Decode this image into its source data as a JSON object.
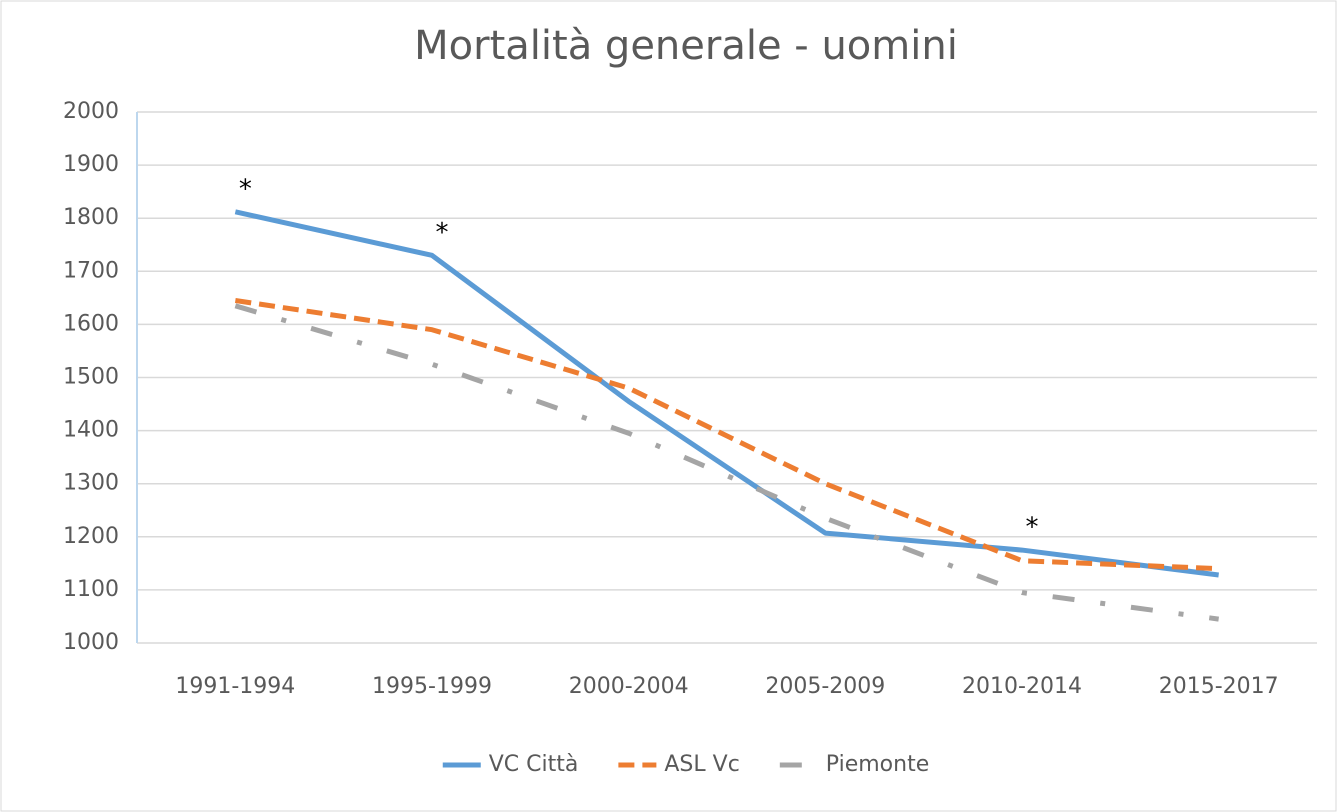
{
  "chart_data": {
    "type": "line",
    "title": "Mortalità generale - uomini",
    "categories": [
      "1991-1994",
      "1995-1999",
      "2000-2004",
      "2005-2009",
      "2010-2014",
      "2015-2017"
    ],
    "series": [
      {
        "name": "VC Città",
        "color": "#5b9bd5",
        "style": "solid",
        "values": [
          1812,
          1730,
          1455,
          1207,
          1175,
          1128
        ]
      },
      {
        "name": "ASL Vc",
        "color": "#ed7d31",
        "style": "dash",
        "values": [
          1645,
          1590,
          1480,
          1300,
          1155,
          1140
        ]
      },
      {
        "name": "Piemonte",
        "color": "#a5a5a5",
        "style": "dashdot",
        "values": [
          1635,
          1525,
          1395,
          1235,
          1095,
          1045
        ]
      }
    ],
    "annotations": [
      {
        "text": "*",
        "x": "1991-1994"
      },
      {
        "text": "*",
        "x": "1995-1999"
      },
      {
        "text": "*",
        "x": "2010-2014"
      }
    ],
    "ylim": [
      1000,
      2000
    ],
    "yticks": [
      1000,
      1100,
      1200,
      1300,
      1400,
      1500,
      1600,
      1700,
      1800,
      1900,
      2000
    ],
    "grid": true,
    "legend": "bottom"
  }
}
